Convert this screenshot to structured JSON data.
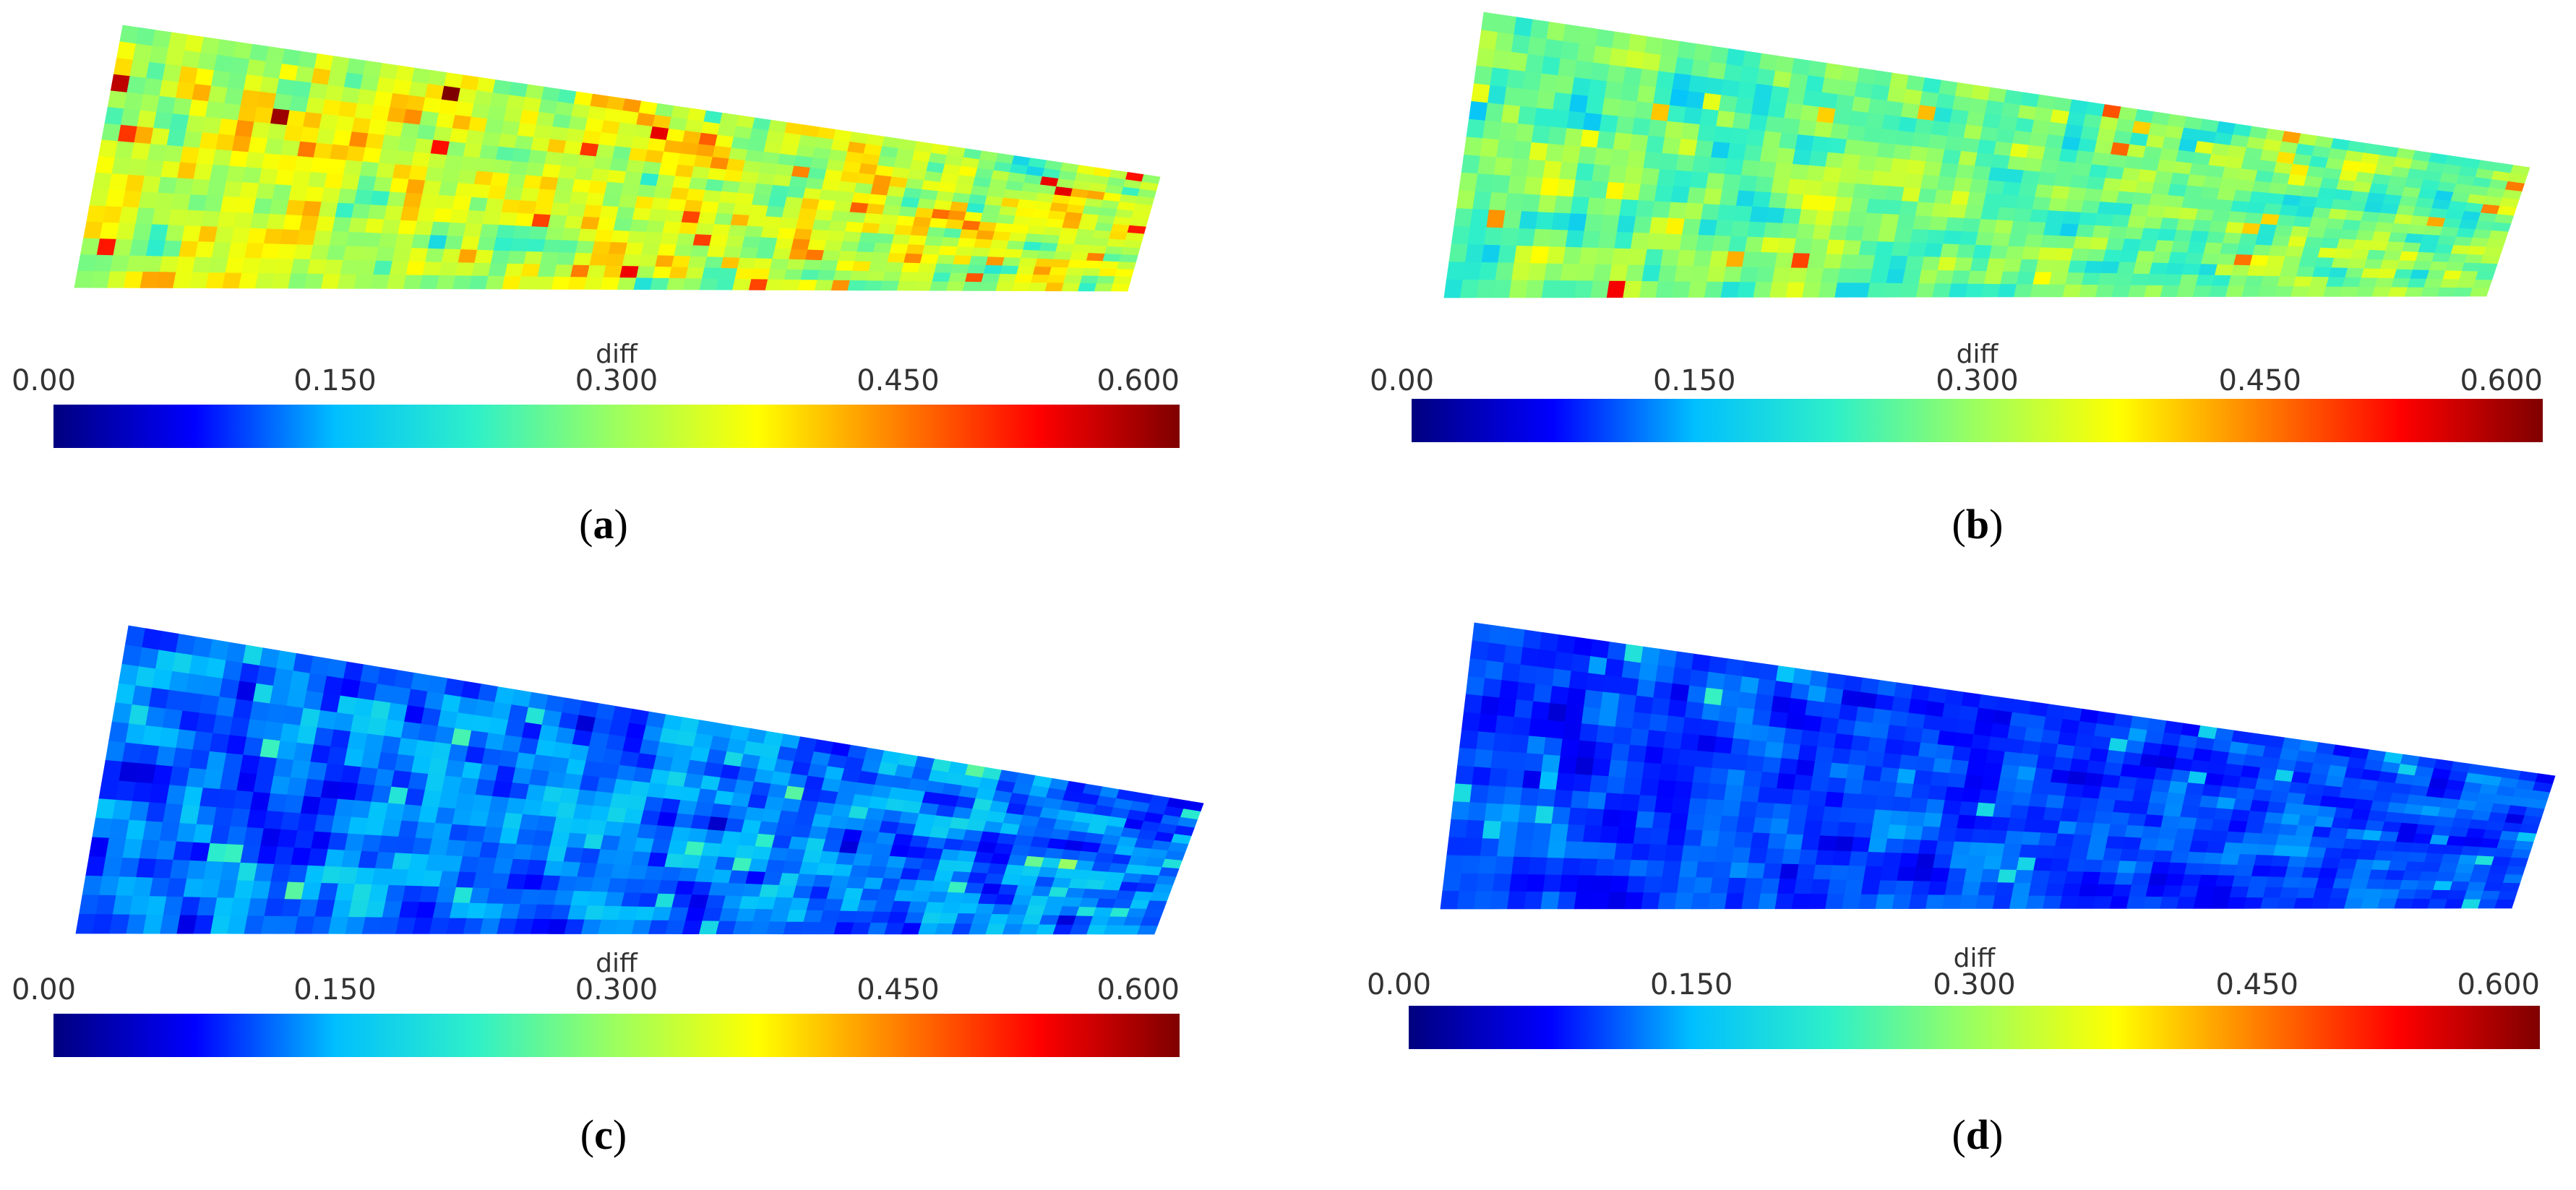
{
  "chart_data": [
    {
      "type": "heatmap",
      "panel_label": "(a)",
      "colorbar": {
        "title": "diff",
        "range": [
          0.0,
          0.6
        ],
        "ticks": [
          "0.00",
          "0.150",
          "0.300",
          "0.450",
          "0.600"
        ],
        "colormap": [
          "#00007f",
          "#0000ff",
          "#00bfff",
          "#2ff0c8",
          "#9dff5e",
          "#ffff00",
          "#ff7f00",
          "#ff0000",
          "#7f0000"
        ]
      },
      "field": {
        "mean": 0.33,
        "spread": 0.11,
        "seed": 11
      }
    },
    {
      "type": "heatmap",
      "panel_label": "(b)",
      "colorbar": {
        "title": "diff",
        "range": [
          0.0,
          0.6
        ],
        "ticks": [
          "0.00",
          "0.150",
          "0.300",
          "0.450",
          "0.600"
        ],
        "colormap": [
          "#00007f",
          "#0000ff",
          "#00bfff",
          "#2ff0c8",
          "#9dff5e",
          "#ffff00",
          "#ff7f00",
          "#ff0000",
          "#7f0000"
        ]
      },
      "field": {
        "mean": 0.27,
        "spread": 0.09,
        "seed": 23
      }
    },
    {
      "type": "heatmap",
      "panel_label": "(c)",
      "colorbar": {
        "title": "diff",
        "range": [
          0.0,
          0.6
        ],
        "ticks": [
          "0.00",
          "0.150",
          "0.300",
          "0.450",
          "0.600"
        ],
        "colormap": [
          "#00007f",
          "#0000ff",
          "#00bfff",
          "#2ff0c8",
          "#9dff5e",
          "#ffff00",
          "#ff7f00",
          "#ff0000",
          "#7f0000"
        ]
      },
      "field": {
        "mean": 0.12,
        "spread": 0.06,
        "seed": 37
      }
    },
    {
      "type": "heatmap",
      "panel_label": "(d)",
      "colorbar": {
        "title": "diff",
        "range": [
          0.0,
          0.6
        ],
        "ticks": [
          "0.00",
          "0.150",
          "0.300",
          "0.450",
          "0.600"
        ],
        "colormap": [
          "#00007f",
          "#0000ff",
          "#00bfff",
          "#2ff0c8",
          "#9dff5e",
          "#ffff00",
          "#ff7f00",
          "#ff0000",
          "#7f0000"
        ]
      },
      "field": {
        "mean": 0.1,
        "spread": 0.04,
        "seed": 51
      }
    }
  ]
}
